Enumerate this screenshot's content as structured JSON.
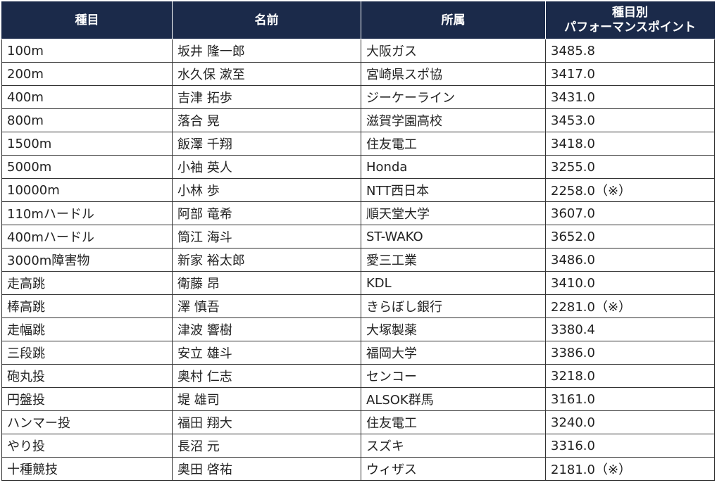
{
  "headers": {
    "event": "種目",
    "name": "名前",
    "affiliation": "所属",
    "points_line1": "種目別",
    "points_line2": "パフォーマンスポイント"
  },
  "rows": [
    {
      "event": "100m",
      "name": "坂井 隆一郎",
      "affiliation": "大阪ガス",
      "points": "3485.8"
    },
    {
      "event": "200m",
      "name": "水久保 漱至",
      "affiliation": "宮崎県スポ協",
      "points": "3417.0"
    },
    {
      "event": "400m",
      "name": "吉津 拓歩",
      "affiliation": "ジーケーライン",
      "points": "3431.0"
    },
    {
      "event": "800m",
      "name": "落合 晃",
      "affiliation": "滋賀学園高校",
      "points": "3453.0"
    },
    {
      "event": "1500m",
      "name": "飯澤 千翔",
      "affiliation": "住友電工",
      "points": "3418.0"
    },
    {
      "event": "5000m",
      "name": "小袖 英人",
      "affiliation": "Honda",
      "points": "3255.0"
    },
    {
      "event": "10000m",
      "name": "小林 歩",
      "affiliation": "NTT西日本",
      "points": "2258.0（※）"
    },
    {
      "event": "110mハードル",
      "name": "阿部 竜希",
      "affiliation": "順天堂大学",
      "points": "3607.0"
    },
    {
      "event": "400mハードル",
      "name": "筒江 海斗",
      "affiliation": "ST-WAKO",
      "points": "3652.0"
    },
    {
      "event": "3000m障害物",
      "name": "新家 裕太郎",
      "affiliation": "愛三工業",
      "points": "3486.0"
    },
    {
      "event": "走高跳",
      "name": "衛藤 昂",
      "affiliation": "KDL",
      "points": "3410.0"
    },
    {
      "event": "棒高跳",
      "name": "澤 慎吾",
      "affiliation": "きらぼし銀行",
      "points": "2281.0（※）"
    },
    {
      "event": "走幅跳",
      "name": "津波 響樹",
      "affiliation": "大塚製薬",
      "points": "3380.4"
    },
    {
      "event": "三段跳",
      "name": "安立 雄斗",
      "affiliation": "福岡大学",
      "points": "3386.0"
    },
    {
      "event": "砲丸投",
      "name": "奥村 仁志",
      "affiliation": "センコー",
      "points": "3218.0"
    },
    {
      "event": "円盤投",
      "name": "堤 雄司",
      "affiliation": "ALSOK群馬",
      "points": "3161.0"
    },
    {
      "event": "ハンマー投",
      "name": "福田 翔大",
      "affiliation": "住友電工",
      "points": "3240.0"
    },
    {
      "event": "やり投",
      "name": "長沼 元",
      "affiliation": "スズキ",
      "points": "3316.0"
    },
    {
      "event": "十種競技",
      "name": "奥田 啓祐",
      "affiliation": "ウィザス",
      "points": "2181.0（※）"
    }
  ]
}
